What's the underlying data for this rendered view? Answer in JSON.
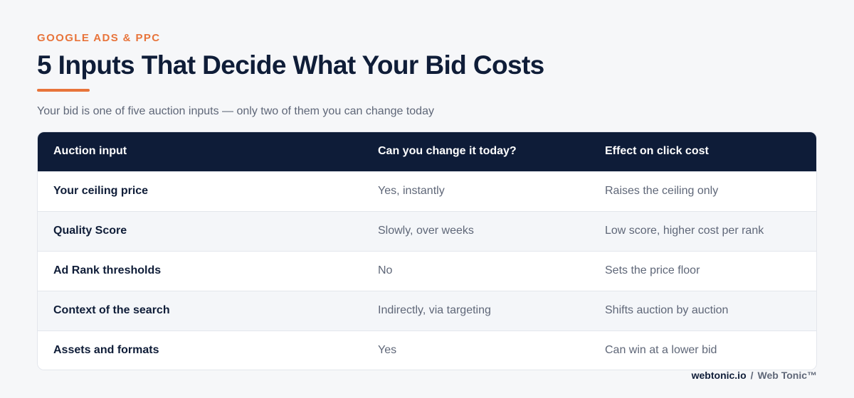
{
  "header": {
    "eyebrow": "GOOGLE ADS & PPC",
    "title": "5 Inputs That Decide What Your Bid Costs",
    "subtitle": "Your bid is one of five auction inputs — only two of them you can change today"
  },
  "table": {
    "columns": [
      "Auction input",
      "Can you change it today?",
      "Effect on click cost"
    ],
    "rows": [
      {
        "input": "Your ceiling price",
        "change": "Yes, instantly",
        "effect": "Raises the ceiling only"
      },
      {
        "input": "Quality Score",
        "change": "Slowly, over weeks",
        "effect": "Low score, higher cost per rank"
      },
      {
        "input": "Ad Rank thresholds",
        "change": "No",
        "effect": "Sets the price floor"
      },
      {
        "input": "Context of the search",
        "change": "Indirectly, via targeting",
        "effect": "Shifts auction by auction"
      },
      {
        "input": "Assets and formats",
        "change": "Yes",
        "effect": "Can win at a lower bid"
      }
    ]
  },
  "footer": {
    "site": "webtonic.io",
    "separator": "/",
    "brand": "Web Tonic™"
  },
  "colors": {
    "accent": "#e8743b",
    "header_bg": "#0e1c38",
    "text_dark": "#0f1d38",
    "text_muted": "#5f6778"
  }
}
